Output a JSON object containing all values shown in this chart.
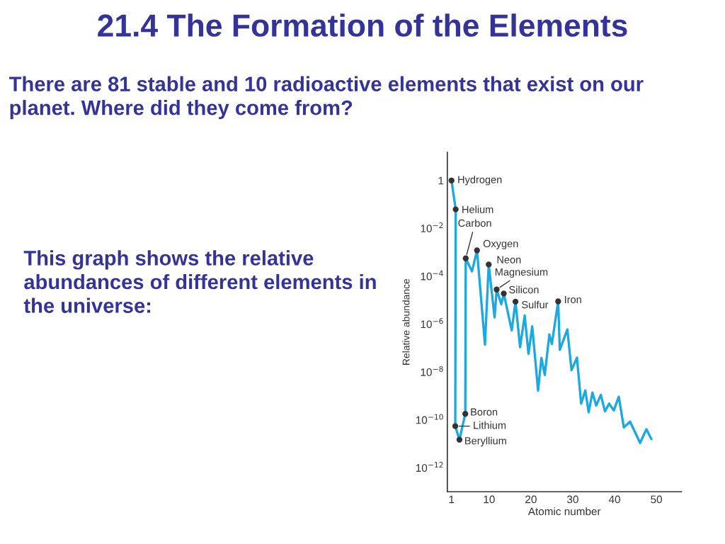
{
  "chart_data": {
    "type": "line",
    "title": "21.4 The Formation of the Elements",
    "subtitle": "There are 81 stable and 10 radioactive elements that exist on our planet. Where did they come from?",
    "xlabel": "Atomic number",
    "ylabel": "Relative abundance",
    "log": "y",
    "grid": false,
    "marker": "none",
    "line_style": "solid",
    "xlim": [
      0,
      56
    ],
    "xticks": [
      1,
      10,
      20,
      30,
      40,
      50
    ],
    "ylim": [
      1e-13,
      15
    ],
    "yticks": [
      1,
      {
        "value": 0.01,
        "label": "10$^{−2}$"
      },
      {
        "value": 0.0001,
        "label": "10$^{−4}$"
      },
      {
        "value": 1e-06,
        "label": "10$^{−6}$"
      },
      {
        "value": 1e-08,
        "label": "10$^{−8}$"
      },
      {
        "value": 1e-10,
        "label": "10$^{−10}$"
      },
      {
        "value": 1e-12,
        "label": "10$^{−12}$"
      }
    ],
    "series": [
      {
        "color": "#1ba9e1",
        "x": [
          1.0,
          2.0,
          1.9,
          2.9,
          4.3,
          4.4,
          5.9,
          7.1,
          9.0,
          9.9,
          11.3,
          11.8,
          12.9,
          13.5,
          15.4,
          16.3,
          17.4,
          18.5,
          19.4,
          20.3,
          21.7,
          22.5,
          23.3,
          24.4,
          25.0,
          26.5,
          26.9,
          28.7,
          29.7,
          31.0,
          32.0,
          33.0,
          33.8,
          34.7,
          35.6,
          36.7,
          37.7,
          38.7,
          39.8,
          41.0,
          42.2,
          43.7,
          46.1,
          47.6,
          48.8
        ],
        "values": [
          1.0,
          0.062,
          5.5e-11,
          1.5e-11,
          1.8e-10,
          0.00056,
          0.00016,
          0.0012,
          1.4e-07,
          0.00031,
          1.9e-06,
          2.8e-05,
          6.8e-06,
          1.9e-05,
          5.5e-07,
          8.7e-06,
          1.1e-07,
          2.3e-06,
          5.8e-08,
          8.1e-07,
          1.7e-09,
          3.9e-08,
          7.6e-09,
          3.7e-07,
          1.5e-07,
          8.9e-06,
          8.5e-08,
          6e-07,
          1.2e-08,
          4e-08,
          4.8e-10,
          1.7e-09,
          2.1e-10,
          1.4e-09,
          4e-10,
          1.1e-09,
          2.3e-10,
          4.8e-10,
          2.5e-10,
          9.3e-10,
          4.9e-11,
          8.5e-11,
          1.1e-11,
          4.1e-11,
          1.6e-11
        ]
      }
    ],
    "annotations": [
      {
        "text": "Hydrogen",
        "x": 1.0,
        "y": 1.0
      },
      {
        "text": "Helium",
        "x": 2.0,
        "y": 0.062
      },
      {
        "text": "Carbon",
        "x": 4.4,
        "y": 0.00056
      },
      {
        "text": "Oxygen",
        "x": 7.1,
        "y": 0.0012
      },
      {
        "text": "Neon",
        "x": 9.9,
        "y": 0.00031
      },
      {
        "text": "Magnesium",
        "x": 11.8,
        "y": 2.8e-05
      },
      {
        "text": "Silicon",
        "x": 13.5,
        "y": 1.9e-05
      },
      {
        "text": "Sulfur",
        "x": 16.3,
        "y": 8.7e-06
      },
      {
        "text": "Iron",
        "x": 26.5,
        "y": 8.9e-06
      },
      {
        "text": "Boron",
        "x": 4.3,
        "y": 1.8e-10
      },
      {
        "text": "Lithium",
        "x": 1.9,
        "y": 5.5e-11
      },
      {
        "text": "Beryllium",
        "x": 2.9,
        "y": 1.5e-11
      },
      "This graph shows the relative abundances of different elements in the universe:"
    ]
  }
}
